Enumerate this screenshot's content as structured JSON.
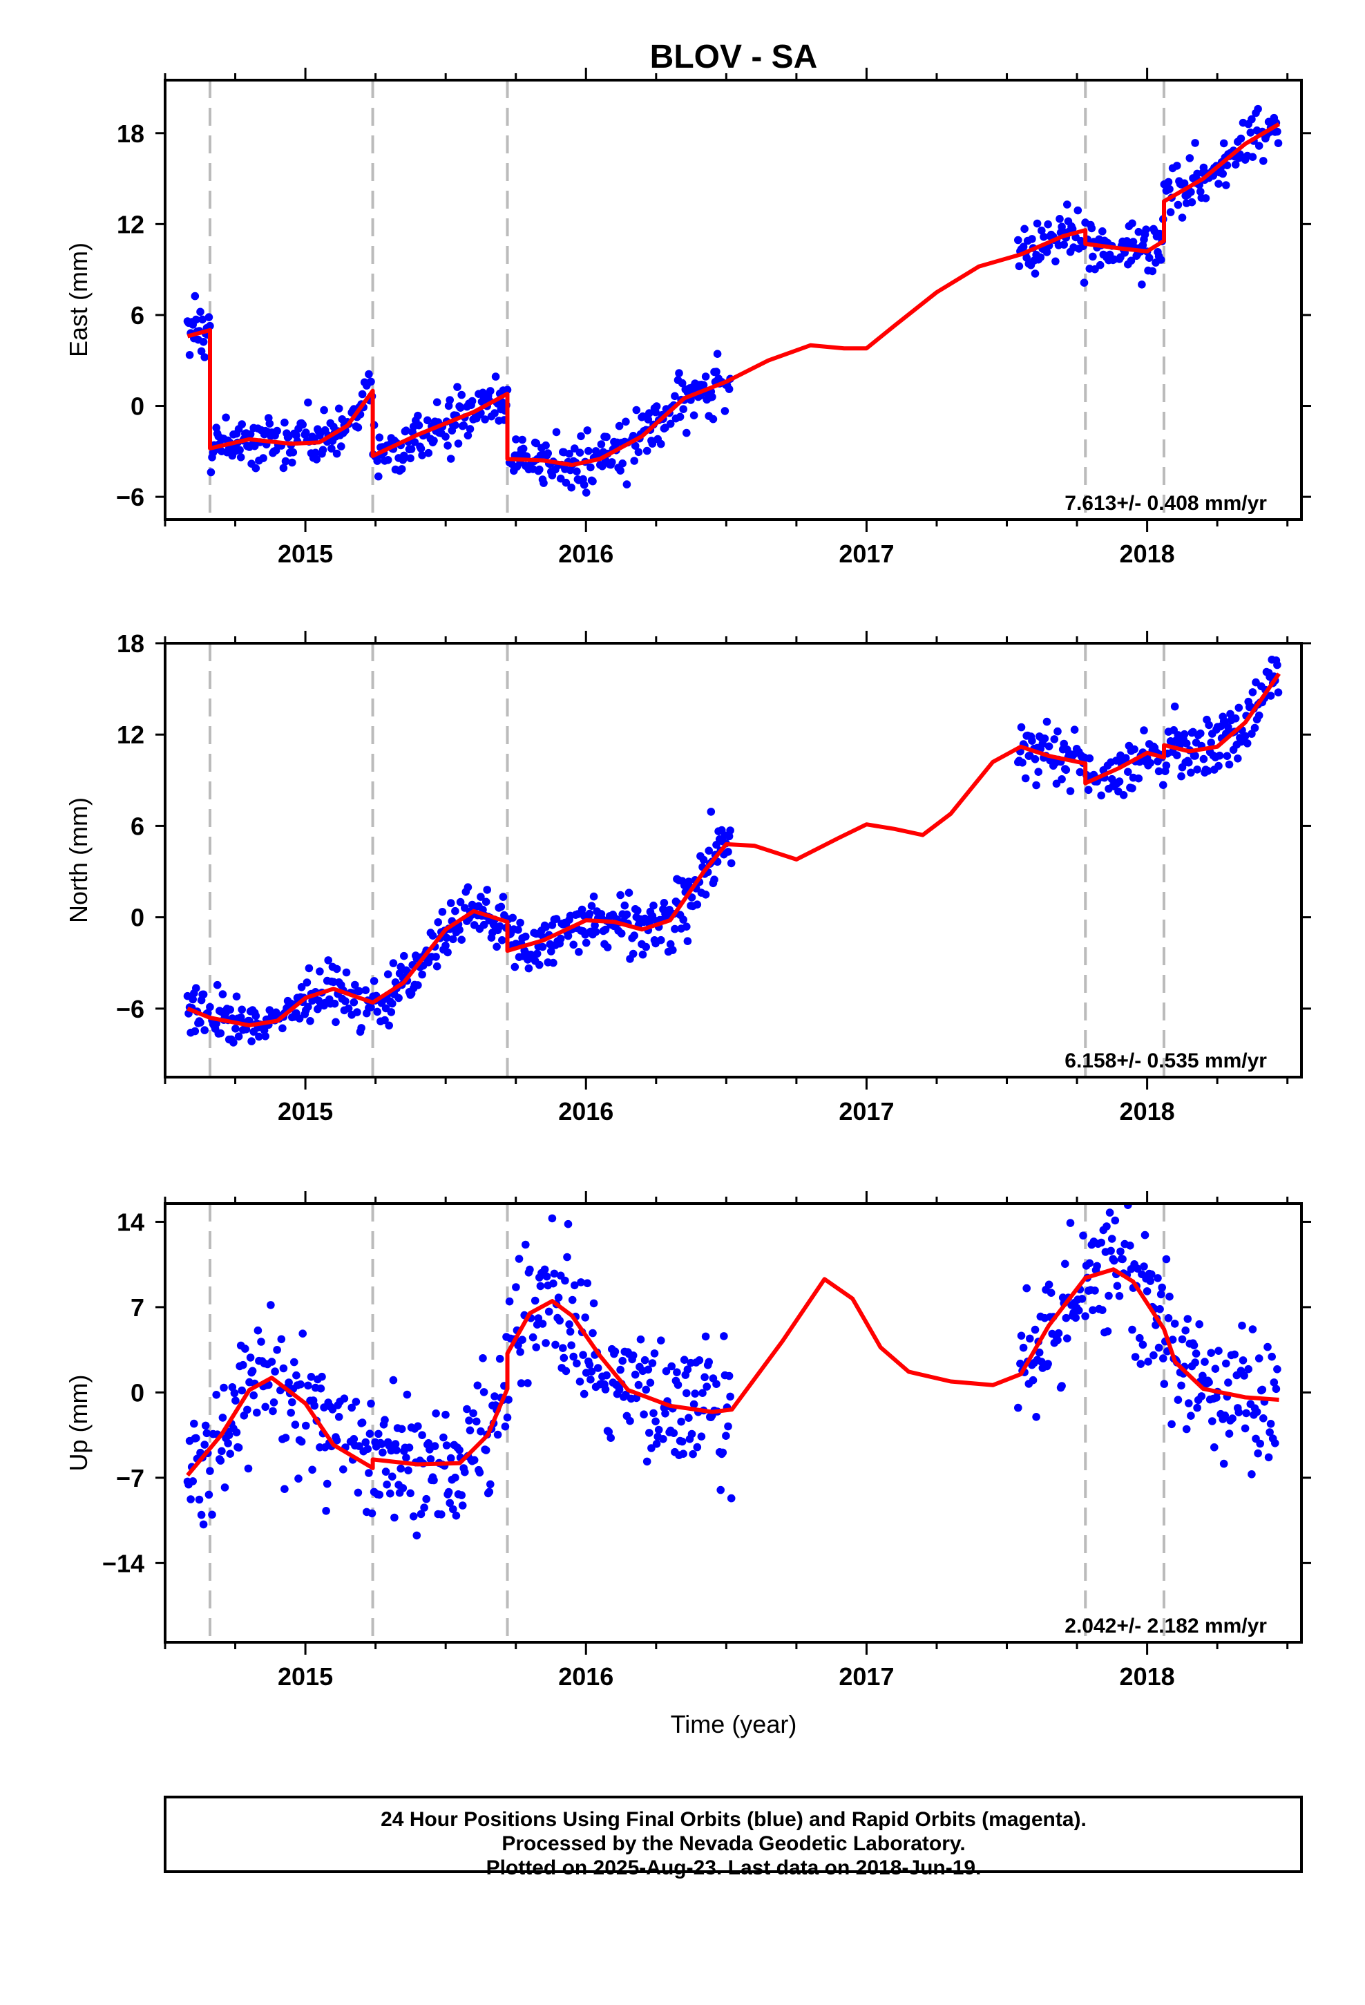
{
  "colors": {
    "data_points": "#0000ff",
    "model_fit": "#ff0000",
    "equipment_change_lines": "#bbbbbb",
    "axes": "#000000"
  },
  "chart_data": {
    "type": "scatter",
    "title": "BLOV - SA",
    "xlabel": "Time (year)",
    "x_ticks": [
      "2015",
      "2016",
      "2017",
      "2018"
    ],
    "xlim": [
      2014.5,
      2018.55
    ],
    "data_span": [
      2014.58,
      2018.47
    ],
    "gaps": [
      [
        2016.52,
        2017.54
      ]
    ],
    "vertical_dashed_lines": [
      2014.66,
      2015.24,
      2015.72,
      2017.78,
      2018.06
    ],
    "grid": false,
    "panels": [
      {
        "name": "east",
        "ylabel": "East (mm)",
        "ylim": [
          -7.5,
          21.5
        ],
        "y_ticks": [
          -6,
          0,
          6,
          12,
          18
        ],
        "rate_text": "7.613+/- 0.408 mm/yr",
        "noise": 0.9,
        "model": [
          [
            2014.58,
            4.6
          ],
          [
            2014.66,
            5.0
          ],
          [
            2014.66,
            -2.8
          ],
          [
            2014.8,
            -2.2
          ],
          [
            2014.95,
            -2.5
          ],
          [
            2015.05,
            -2.4
          ],
          [
            2015.15,
            -1.3
          ],
          [
            2015.24,
            1.0
          ],
          [
            2015.24,
            -3.3
          ],
          [
            2015.4,
            -1.9
          ],
          [
            2015.6,
            -0.4
          ],
          [
            2015.72,
            0.8
          ],
          [
            2015.72,
            -3.5
          ],
          [
            2015.85,
            -3.6
          ],
          [
            2015.95,
            -3.9
          ],
          [
            2016.05,
            -3.5
          ],
          [
            2016.2,
            -2.0
          ],
          [
            2016.35,
            0.5
          ],
          [
            2016.5,
            1.6
          ],
          [
            2016.65,
            3.0
          ],
          [
            2016.8,
            4.0
          ],
          [
            2016.92,
            3.8
          ],
          [
            2017.0,
            3.8
          ],
          [
            2017.1,
            5.3
          ],
          [
            2017.25,
            7.5
          ],
          [
            2017.4,
            9.2
          ],
          [
            2017.55,
            10.0
          ],
          [
            2017.7,
            11.2
          ],
          [
            2017.78,
            11.6
          ],
          [
            2017.78,
            10.7
          ],
          [
            2017.9,
            10.4
          ],
          [
            2018.0,
            10.2
          ],
          [
            2018.06,
            10.9
          ],
          [
            2018.06,
            13.5
          ],
          [
            2018.2,
            15.0
          ],
          [
            2018.35,
            17.3
          ],
          [
            2018.47,
            18.6
          ]
        ]
      },
      {
        "name": "north",
        "ylabel": "North (mm)",
        "ylim": [
          -10.5,
          18
        ],
        "y_ticks": [
          -6,
          0,
          6,
          12,
          18
        ],
        "rate_text": "6.158+/- 0.535 mm/yr",
        "noise": 0.9,
        "model": [
          [
            2014.58,
            -6.0
          ],
          [
            2014.66,
            -6.6
          ],
          [
            2014.8,
            -7.1
          ],
          [
            2014.9,
            -6.8
          ],
          [
            2015.0,
            -5.3
          ],
          [
            2015.1,
            -4.7
          ],
          [
            2015.24,
            -5.6
          ],
          [
            2015.35,
            -4.3
          ],
          [
            2015.5,
            -0.8
          ],
          [
            2015.6,
            0.4
          ],
          [
            2015.72,
            -0.3
          ],
          [
            2015.72,
            -2.2
          ],
          [
            2015.85,
            -1.5
          ],
          [
            2016.0,
            -0.2
          ],
          [
            2016.1,
            -0.3
          ],
          [
            2016.2,
            -0.8
          ],
          [
            2016.3,
            -0.2
          ],
          [
            2016.42,
            3.0
          ],
          [
            2016.5,
            4.8
          ],
          [
            2016.6,
            4.7
          ],
          [
            2016.75,
            3.8
          ],
          [
            2016.9,
            5.2
          ],
          [
            2017.0,
            6.1
          ],
          [
            2017.1,
            5.8
          ],
          [
            2017.2,
            5.4
          ],
          [
            2017.3,
            6.8
          ],
          [
            2017.45,
            10.2
          ],
          [
            2017.55,
            11.2
          ],
          [
            2017.65,
            10.6
          ],
          [
            2017.78,
            10.1
          ],
          [
            2017.78,
            8.8
          ],
          [
            2017.9,
            9.8
          ],
          [
            2018.0,
            10.8
          ],
          [
            2018.06,
            10.5
          ],
          [
            2018.06,
            11.3
          ],
          [
            2018.15,
            10.9
          ],
          [
            2018.25,
            11.2
          ],
          [
            2018.35,
            12.8
          ],
          [
            2018.47,
            16.0
          ]
        ]
      },
      {
        "name": "up",
        "ylabel": "Up (mm)",
        "ylim": [
          -20.5,
          15.5
        ],
        "y_ticks": [
          -14,
          -7,
          0,
          7,
          14
        ],
        "rate_text": "2.042+/- 2.182 mm/yr",
        "noise": 2.8,
        "model": [
          [
            2014.58,
            -6.8
          ],
          [
            2014.7,
            -3.5
          ],
          [
            2014.8,
            0.2
          ],
          [
            2014.88,
            1.2
          ],
          [
            2015.0,
            -0.9
          ],
          [
            2015.1,
            -4.3
          ],
          [
            2015.24,
            -6.2
          ],
          [
            2015.24,
            -5.5
          ],
          [
            2015.4,
            -5.9
          ],
          [
            2015.55,
            -5.8
          ],
          [
            2015.65,
            -3.5
          ],
          [
            2015.72,
            0.3
          ],
          [
            2015.72,
            3.2
          ],
          [
            2015.8,
            6.5
          ],
          [
            2015.88,
            7.5
          ],
          [
            2015.95,
            6.3
          ],
          [
            2016.05,
            3.0
          ],
          [
            2016.15,
            0.2
          ],
          [
            2016.3,
            -1.1
          ],
          [
            2016.45,
            -1.6
          ],
          [
            2016.52,
            -1.4
          ],
          [
            2016.7,
            4.2
          ],
          [
            2016.85,
            9.3
          ],
          [
            2016.95,
            7.7
          ],
          [
            2017.05,
            3.7
          ],
          [
            2017.15,
            1.7
          ],
          [
            2017.3,
            0.9
          ],
          [
            2017.45,
            0.6
          ],
          [
            2017.55,
            1.5
          ],
          [
            2017.65,
            5.5
          ],
          [
            2017.78,
            9.4
          ],
          [
            2017.88,
            10.1
          ],
          [
            2017.95,
            9.1
          ],
          [
            2018.06,
            5.2
          ],
          [
            2018.1,
            2.5
          ],
          [
            2018.2,
            0.3
          ],
          [
            2018.35,
            -0.4
          ],
          [
            2018.47,
            -0.6
          ]
        ]
      }
    ],
    "footer_lines": [
      "24 Hour Positions Using Final Orbits (blue) and Rapid Orbits (magenta).",
      "Processed by the Nevada Geodetic Laboratory.",
      "Plotted on 2025-Aug-23. Last data on 2018-Jun-19."
    ]
  }
}
